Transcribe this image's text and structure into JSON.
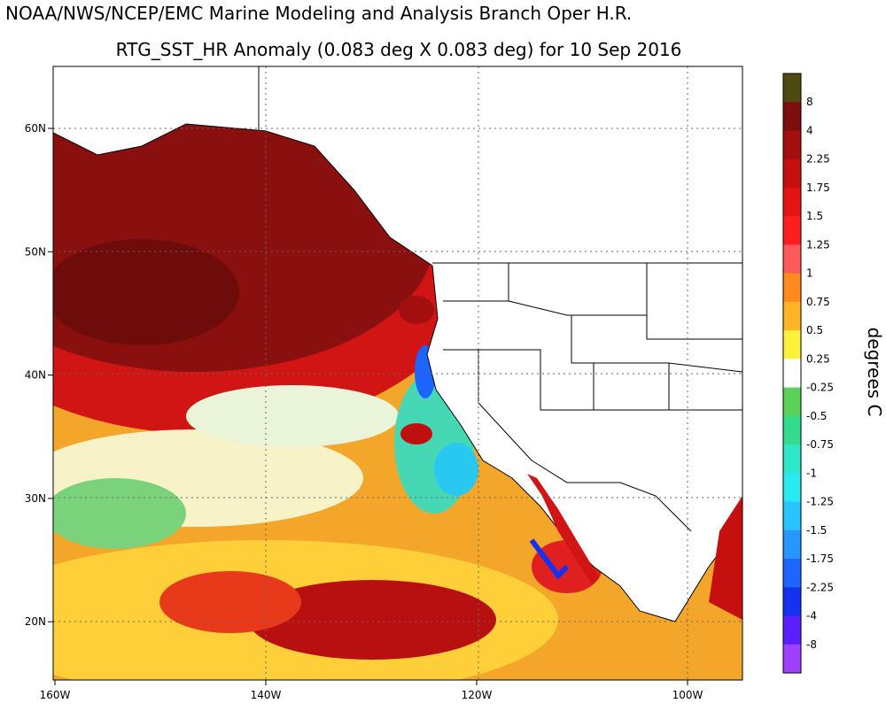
{
  "header": {
    "title": "NOAA/NWS/NCEP/EMC Marine Modeling and Analysis Branch Oper H.R.",
    "subtitle": "RTG_SST_HR Anomaly (0.083 deg X 0.083 deg) for 10 Sep 2016"
  },
  "map": {
    "lat_labels": [
      "60N",
      "50N",
      "40N",
      "30N",
      "20N"
    ],
    "lon_labels": [
      "160W",
      "140W",
      "120W",
      "100W"
    ]
  },
  "colorbar": {
    "title": "degrees C",
    "labels": [
      "8",
      "4",
      "2.25",
      "1.75",
      "1.5",
      "1.25",
      "1",
      "0.75",
      "0.5",
      "0.25",
      "-0.25",
      "-0.5",
      "-0.75",
      "-1",
      "-1.25",
      "-1.5",
      "-1.75",
      "-2.25",
      "-4",
      "-8"
    ],
    "colors": [
      "#4f4a12",
      "#7c0e0e",
      "#a30e0e",
      "#c60f0f",
      "#e41414",
      "#ff1e1e",
      "#ff5a5a",
      "#ff8a1e",
      "#ffb428",
      "#fff03c",
      "#ffffff",
      "#5ad25a",
      "#32dc8c",
      "#2ee6c8",
      "#28eaf0",
      "#28c4ff",
      "#2896ff",
      "#1e64ff",
      "#1432f0",
      "#5a1eff",
      "#a040ff"
    ]
  }
}
